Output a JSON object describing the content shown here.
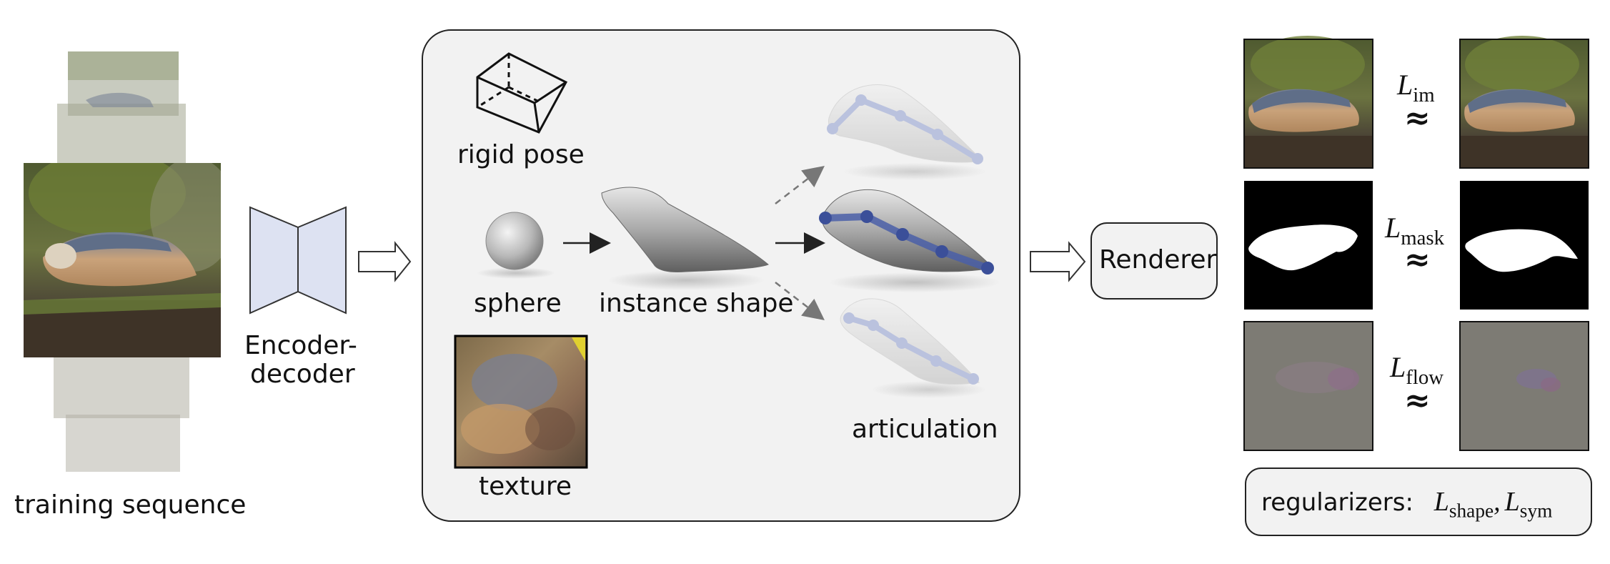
{
  "left": {
    "caption": "training sequence",
    "encoder_label_line1": "Encoder-",
    "encoder_label_line2": "decoder"
  },
  "center": {
    "rigid_pose": "rigid pose",
    "sphere": "sphere",
    "instance_shape": "instance shape",
    "texture": "texture",
    "articulation": "articulation"
  },
  "renderer": "Renderer",
  "losses": [
    {
      "symbol": "L",
      "sub": "im"
    },
    {
      "symbol": "L",
      "sub": "mask"
    },
    {
      "symbol": "L",
      "sub": "flow"
    }
  ],
  "approx_symbol": "≈",
  "regularizers": {
    "prefix": "regularizers:",
    "terms": [
      {
        "symbol": "L",
        "sub": "shape"
      },
      {
        "symbol": "L",
        "sub": "sym"
      }
    ],
    "separator": ","
  },
  "colors": {
    "panel_bg": "#f2f2f2",
    "encoder_fill": "#dde2f2",
    "bone_blue": "#4a5fa8",
    "flow_gray": "#7d7b74"
  }
}
